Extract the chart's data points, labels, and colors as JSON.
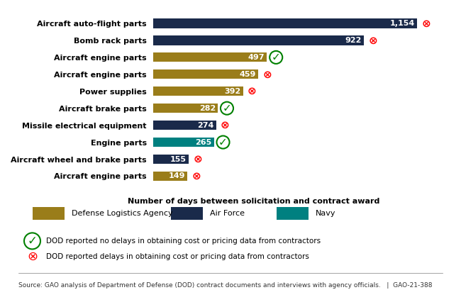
{
  "categories": [
    "Aircraft auto-flight parts",
    "Bomb rack parts",
    "Aircraft engine parts",
    "Aircraft engine parts ",
    "Power supplies",
    "Aircraft brake parts",
    "Missile electrical equipment",
    "Engine parts",
    "Aircraft wheel and brake parts",
    "Aircraft engine parts  "
  ],
  "values": [
    1154,
    922,
    497,
    459,
    392,
    282,
    274,
    265,
    155,
    149
  ],
  "colors": [
    "#1a2a4a",
    "#1a2a4a",
    "#9a7d1a",
    "#9a7d1a",
    "#9a7d1a",
    "#9a7d1a",
    "#1a2a4a",
    "#008080",
    "#1a2a4a",
    "#9a7d1a"
  ],
  "delay": [
    true,
    true,
    false,
    true,
    true,
    false,
    true,
    false,
    true,
    true
  ],
  "xlim": [
    0,
    1300
  ],
  "xlabel": "Number of days between solicitation and contract award",
  "bar_height": 0.55,
  "source_text": "Source: GAO analysis of Department of Defense (DOD) contract documents and interviews with agency officials.   |  GAO-21-388",
  "legend_items": [
    {
      "label": "Defense Logistics Agency",
      "color": "#9a7d1a"
    },
    {
      "label": "Air Force",
      "color": "#1a2a4a"
    },
    {
      "label": "Navy",
      "color": "#008080"
    }
  ],
  "no_delay_text": "DOD reported no delays in obtaining cost or pricing data from contractors",
  "delay_text": "DOD reported delays in obtaining cost or pricing data from contractors"
}
